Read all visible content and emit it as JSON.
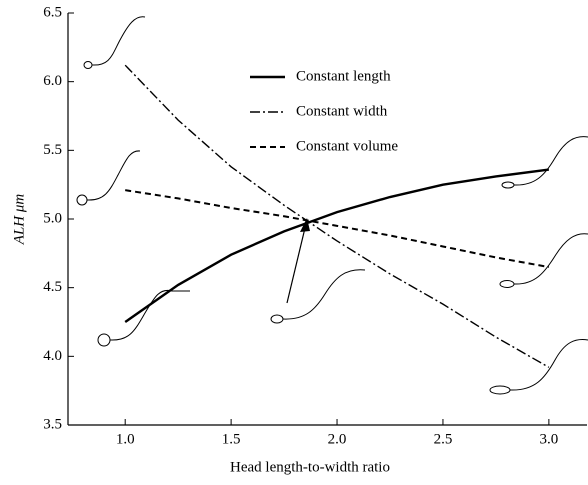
{
  "chart_data": {
    "type": "line",
    "xlabel": "Head length-to-width ratio",
    "ylabel": "ALH μm",
    "x": [
      1.0,
      1.25,
      1.5,
      1.75,
      2.0,
      2.25,
      2.5,
      2.75,
      3.0
    ],
    "series": [
      {
        "name": "Constant length",
        "color": "#000000",
        "dash": "solid",
        "values": [
          4.25,
          4.52,
          4.74,
          4.91,
          5.05,
          5.16,
          5.25,
          5.31,
          5.36
        ]
      },
      {
        "name": "Constant width",
        "color": "#000000",
        "dash": "dashdot",
        "values": [
          6.12,
          5.72,
          5.38,
          5.1,
          4.84,
          4.6,
          4.38,
          4.14,
          3.92
        ]
      },
      {
        "name": "Constant volume",
        "color": "#000000",
        "dash": "dashed",
        "values": [
          5.21,
          5.15,
          5.08,
          5.02,
          4.95,
          4.88,
          4.8,
          4.72,
          4.65
        ]
      }
    ],
    "xlim": [
      0.73,
      3.18
    ],
    "ylim": [
      3.5,
      6.5
    ],
    "xticks": [
      {
        "value": 1.0,
        "label": "1.0"
      },
      1.5,
      {
        "value": 2.0,
        "label": "2.0"
      },
      2.5,
      {
        "value": 3.0,
        "label": "3.0"
      }
    ],
    "yticks": [
      3.5,
      {
        "value": 4.0,
        "label": "4.0"
      },
      4.5,
      {
        "value": 5.0,
        "label": "5.0"
      },
      5.5,
      {
        "value": 6.0,
        "label": "6.0"
      },
      6.5
    ],
    "grid": false
  }
}
